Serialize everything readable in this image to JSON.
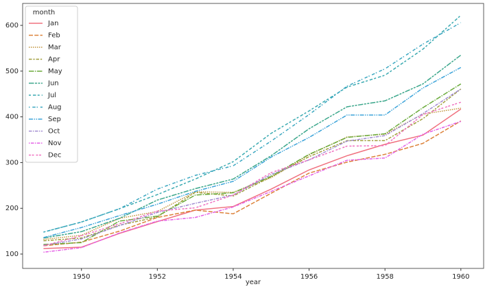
{
  "chart_data": {
    "type": "line",
    "xlabel": "year",
    "legend_title": "month",
    "legend": "upper left",
    "x": [
      1949,
      1950,
      1951,
      1952,
      1953,
      1954,
      1955,
      1956,
      1957,
      1958,
      1959,
      1960
    ],
    "xlim": [
      1948.45,
      1960.6
    ],
    "xticks": [
      1950,
      1952,
      1954,
      1956,
      1958,
      1960
    ],
    "ylim": [
      68.6,
      648
    ],
    "yticks": [
      100,
      200,
      300,
      400,
      500,
      600
    ],
    "series": [
      {
        "name": "Jan",
        "color": "#f0707e",
        "values": [
          112,
          115,
          145,
          171,
          196,
          204,
          242,
          284,
          315,
          340,
          360,
          417
        ]
      },
      {
        "name": "Feb",
        "color": "#dc8139",
        "values": [
          118,
          126,
          150,
          180,
          196,
          188,
          233,
          277,
          301,
          318,
          342,
          391
        ]
      },
      {
        "name": "Mar",
        "color": "#c0933a",
        "values": [
          132,
          141,
          178,
          193,
          236,
          235,
          267,
          317,
          356,
          362,
          406,
          419
        ]
      },
      {
        "name": "Apr",
        "color": "#a09e3a",
        "values": [
          129,
          135,
          163,
          181,
          235,
          227,
          269,
          313,
          348,
          348,
          396,
          461
        ]
      },
      {
        "name": "May",
        "color": "#6aaa3a",
        "values": [
          121,
          125,
          172,
          183,
          229,
          234,
          270,
          318,
          355,
          363,
          420,
          472
        ]
      },
      {
        "name": "Jun",
        "color": "#3aa68a",
        "values": [
          135,
          149,
          178,
          218,
          243,
          264,
          315,
          374,
          422,
          435,
          472,
          535
        ]
      },
      {
        "name": "Jul",
        "color": "#39a9b0",
        "values": [
          148,
          170,
          199,
          230,
          264,
          302,
          364,
          413,
          465,
          491,
          548,
          622
        ]
      },
      {
        "name": "Aug",
        "color": "#39a6c0",
        "values": [
          148,
          170,
          199,
          242,
          272,
          293,
          347,
          405,
          467,
          505,
          559,
          606
        ]
      },
      {
        "name": "Sep",
        "color": "#3ba3d9",
        "values": [
          136,
          158,
          184,
          209,
          237,
          259,
          312,
          355,
          404,
          404,
          463,
          508
        ]
      },
      {
        "name": "Oct",
        "color": "#a08ad0",
        "values": [
          119,
          133,
          162,
          191,
          211,
          229,
          274,
          306,
          347,
          359,
          407,
          461
        ]
      },
      {
        "name": "Nov",
        "color": "#e45ee5",
        "values": [
          104,
          114,
          146,
          172,
          180,
          203,
          237,
          271,
          305,
          310,
          362,
          390
        ]
      },
      {
        "name": "Dec",
        "color": "#f070c0",
        "values": [
          118,
          140,
          166,
          194,
          201,
          229,
          278,
          306,
          336,
          337,
          405,
          432
        ]
      }
    ]
  }
}
